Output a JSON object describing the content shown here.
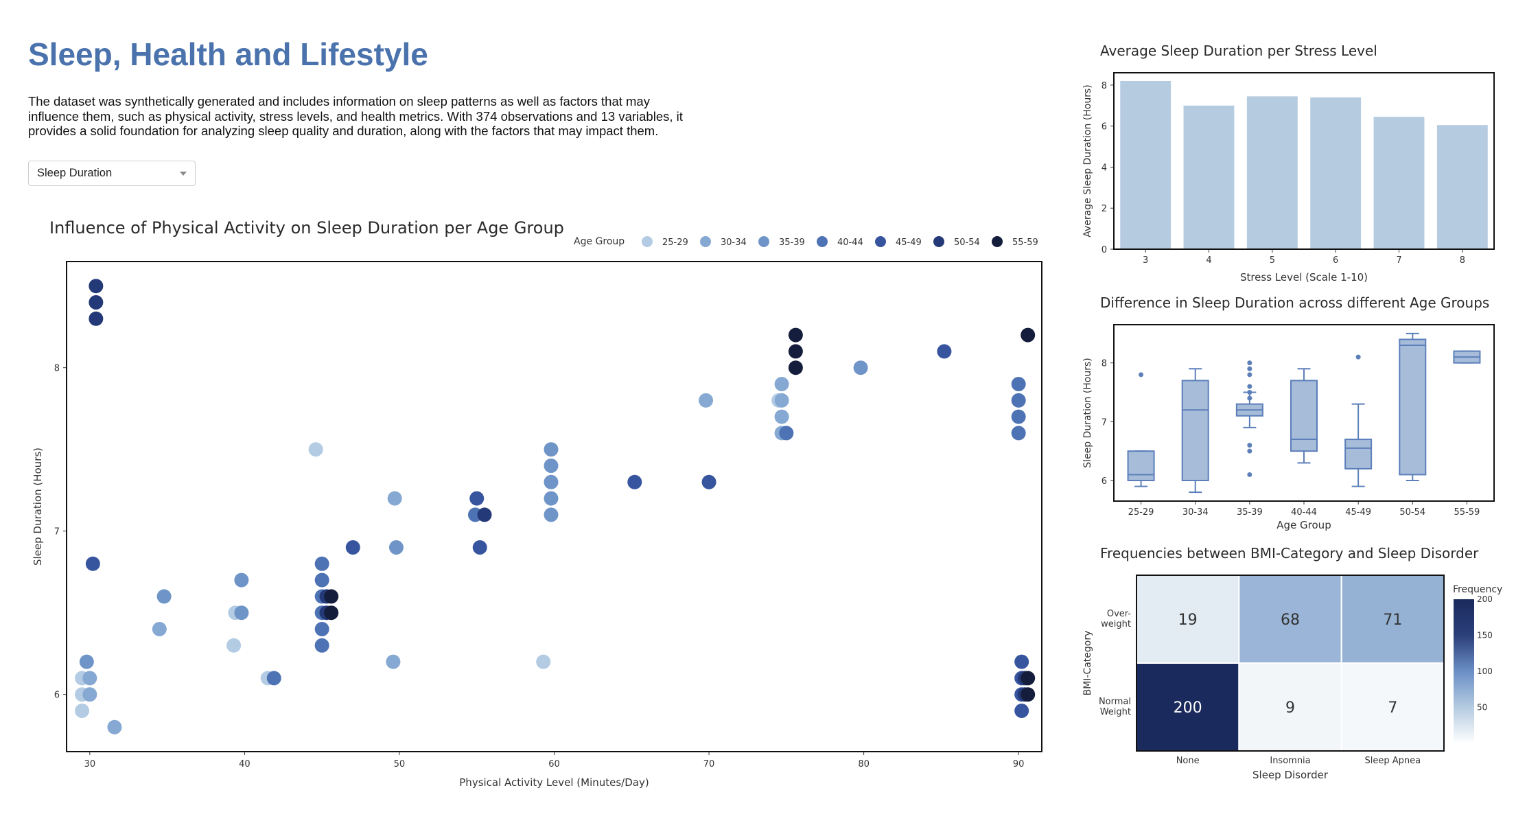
{
  "page": {
    "title": "Sleep, Health and Lifestyle",
    "description": "The dataset was synthetically generated and includes information on sleep patterns as well as factors that may influence them, such as physical activity, stress levels, and health metrics. With 374 observations and 13 variables, it provides a solid foundation for analyzing sleep quality and duration, along with the factors that may impact them."
  },
  "dropdown": {
    "selected": "Sleep Duration"
  },
  "chart_data": [
    {
      "id": "scatter",
      "type": "scatter",
      "title": "Influence of Physical Activity on Sleep Duration per Age Group",
      "xlabel": "Physical Activity Level (Minutes/Day)",
      "ylabel": "Sleep Duration (Hours)",
      "xlim": [
        28.5,
        91.5
      ],
      "ylim": [
        5.65,
        8.65
      ],
      "xticks": [
        30,
        40,
        50,
        60,
        70,
        80,
        90
      ],
      "yticks": [
        6,
        7,
        8
      ],
      "legend_title": "Age Group",
      "legend_position": "top-right",
      "grid": false,
      "series": [
        {
          "name": "25-29",
          "color": "#b3cbe3",
          "points": [
            [
              29.5,
              6.1
            ],
            [
              29.5,
              6.0
            ],
            [
              29.5,
              5.9
            ],
            [
              39.3,
              6.3
            ],
            [
              39.4,
              6.5
            ],
            [
              41.5,
              6.1
            ],
            [
              44.6,
              7.5
            ],
            [
              59.3,
              6.2
            ],
            [
              74.5,
              7.8
            ]
          ]
        },
        {
          "name": "30-34",
          "color": "#86a9d3",
          "points": [
            [
              30.0,
              6.1
            ],
            [
              30.0,
              6.0
            ],
            [
              31.6,
              5.8
            ],
            [
              34.5,
              6.4
            ],
            [
              49.6,
              6.2
            ],
            [
              49.7,
              7.2
            ],
            [
              69.8,
              7.8
            ],
            [
              74.7,
              7.8
            ],
            [
              74.7,
              7.9
            ],
            [
              74.7,
              7.7
            ],
            [
              74.7,
              7.6
            ]
          ]
        },
        {
          "name": "35-39",
          "color": "#6f95c8",
          "points": [
            [
              29.8,
              6.2
            ],
            [
              34.8,
              6.6
            ],
            [
              39.8,
              6.7
            ],
            [
              39.8,
              6.5
            ],
            [
              49.8,
              6.9
            ],
            [
              59.8,
              7.5
            ],
            [
              59.8,
              7.4
            ],
            [
              59.8,
              7.3
            ],
            [
              59.8,
              7.2
            ],
            [
              59.8,
              7.1
            ],
            [
              79.8,
              8.0
            ]
          ]
        },
        {
          "name": "40-44",
          "color": "#4d73b4",
          "points": [
            [
              41.9,
              6.1
            ],
            [
              45.0,
              6.8
            ],
            [
              45.0,
              6.7
            ],
            [
              45.0,
              6.6
            ],
            [
              45.0,
              6.5
            ],
            [
              45.0,
              6.4
            ],
            [
              45.0,
              6.3
            ],
            [
              54.9,
              7.1
            ],
            [
              75.0,
              7.6
            ],
            [
              90.0,
              7.9
            ],
            [
              90.0,
              7.8
            ],
            [
              90.0,
              7.7
            ],
            [
              90.0,
              7.6
            ]
          ]
        },
        {
          "name": "45-49",
          "color": "#37559f",
          "points": [
            [
              30.2,
              6.8
            ],
            [
              47.0,
              6.9
            ],
            [
              55.0,
              7.2
            ],
            [
              55.2,
              6.9
            ],
            [
              65.2,
              7.3
            ],
            [
              70.0,
              7.3
            ],
            [
              90.2,
              6.2
            ],
            [
              90.2,
              6.1
            ],
            [
              90.2,
              6.0
            ],
            [
              90.2,
              5.9
            ],
            [
              85.2,
              8.1
            ]
          ]
        },
        {
          "name": "50-54",
          "color": "#243a78",
          "points": [
            [
              30.4,
              8.5
            ],
            [
              30.4,
              8.4
            ],
            [
              30.4,
              8.3
            ],
            [
              45.3,
              6.5
            ],
            [
              45.3,
              6.6
            ],
            [
              55.5,
              7.1
            ],
            [
              90.4,
              6.1
            ],
            [
              90.4,
              6.0
            ]
          ]
        },
        {
          "name": "55-59",
          "color": "#141e3c",
          "points": [
            [
              45.6,
              6.6
            ],
            [
              45.6,
              6.5
            ],
            [
              75.6,
              8.2
            ],
            [
              75.6,
              8.1
            ],
            [
              75.6,
              8.0
            ],
            [
              90.6,
              8.2
            ],
            [
              90.6,
              6.1
            ],
            [
              90.6,
              6.0
            ]
          ]
        }
      ]
    },
    {
      "id": "bar",
      "type": "bar",
      "title": "Average Sleep Duration per Stress Level",
      "xlabel": "Stress Level (Scale 1-10)",
      "ylabel": "Average Sleep Duration (Hours)",
      "categories": [
        "3",
        "4",
        "5",
        "6",
        "7",
        "8"
      ],
      "values": [
        8.2,
        7.0,
        7.45,
        7.4,
        6.45,
        6.05
      ],
      "ylim": [
        0,
        8.6
      ],
      "yticks": [
        0,
        2,
        4,
        6,
        8
      ],
      "color": "#b4cbe0"
    },
    {
      "id": "box",
      "type": "box",
      "title": "Difference in Sleep Duration across different Age Groups",
      "xlabel": "Age Group",
      "ylabel": "Sleep Duration (Hours)",
      "categories": [
        "25-29",
        "30-34",
        "35-39",
        "40-44",
        "45-49",
        "50-54",
        "55-59"
      ],
      "ylim": [
        5.65,
        8.65
      ],
      "yticks": [
        6,
        7,
        8
      ],
      "boxes": [
        {
          "min": 5.9,
          "q1": 6.0,
          "median": 6.1,
          "q3": 6.5,
          "max": 6.5,
          "outliers": [
            7.8
          ]
        },
        {
          "min": 5.8,
          "q1": 6.0,
          "median": 7.2,
          "q3": 7.7,
          "max": 7.9,
          "outliers": []
        },
        {
          "min": 6.9,
          "q1": 7.1,
          "median": 7.2,
          "q3": 7.3,
          "max": 7.5,
          "outliers": [
            8.0,
            7.9,
            7.8,
            7.6,
            7.5,
            7.4,
            6.6,
            6.5,
            6.1
          ]
        },
        {
          "min": 6.3,
          "q1": 6.5,
          "median": 6.7,
          "q3": 7.7,
          "max": 7.9,
          "outliers": []
        },
        {
          "min": 5.9,
          "q1": 6.2,
          "median": 6.55,
          "q3": 6.7,
          "max": 7.3,
          "outliers": [
            8.1
          ]
        },
        {
          "min": 6.0,
          "q1": 6.1,
          "median": 8.3,
          "q3": 8.4,
          "max": 8.5,
          "outliers": []
        },
        {
          "min": 8.0,
          "q1": 8.0,
          "median": 8.1,
          "q3": 8.2,
          "max": 8.2,
          "outliers": []
        }
      ],
      "color": "#a6bcd9",
      "line_color": "#5c7fba"
    },
    {
      "id": "heatmap",
      "type": "heatmap",
      "title": "Frequencies between BMI-Category and Sleep Disorder",
      "xlabel": "Sleep Disorder",
      "ylabel": "BMI-Category",
      "x": [
        "None",
        "Insomnia",
        "Sleep Apnea"
      ],
      "y_lines": [
        [
          "Over-",
          "weight"
        ],
        [
          "Normal",
          "Weight"
        ]
      ],
      "z": [
        [
          19,
          68,
          71
        ],
        [
          200,
          9,
          7
        ]
      ],
      "colorbar_title": "Frequency",
      "colorbar_ticks": [
        50,
        100,
        150,
        200
      ],
      "zlim": [
        0,
        200
      ],
      "colorscale": [
        "#ffffff",
        "#b4cbe0",
        "#6b8fc6",
        "#2b3f7a",
        "#1a2a5c"
      ]
    }
  ]
}
